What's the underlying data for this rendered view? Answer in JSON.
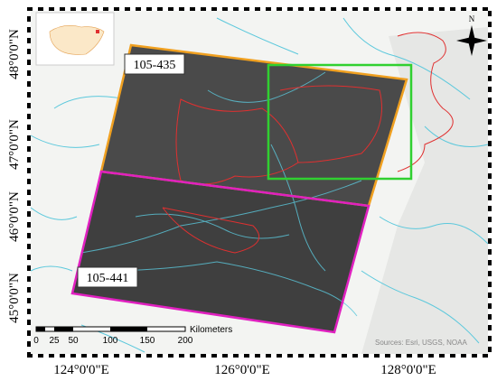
{
  "map": {
    "scene_labels": [
      "105-435",
      "105-441"
    ],
    "latitude_labels": [
      "48°0'0\"N",
      "47°0'0\"N",
      "46°0'0\"N",
      "45°0'0\"N"
    ],
    "longitude_labels": [
      "124°0'0\"E",
      "126°0'0\"E",
      "128°0'0\"E"
    ],
    "scale_bar": {
      "labels": [
        "0",
        "25",
        "50",
        "100",
        "150",
        "200"
      ],
      "unit": "Kilometers"
    },
    "north": "N",
    "sources": "Sources: Esri, USGS, NOAA"
  }
}
